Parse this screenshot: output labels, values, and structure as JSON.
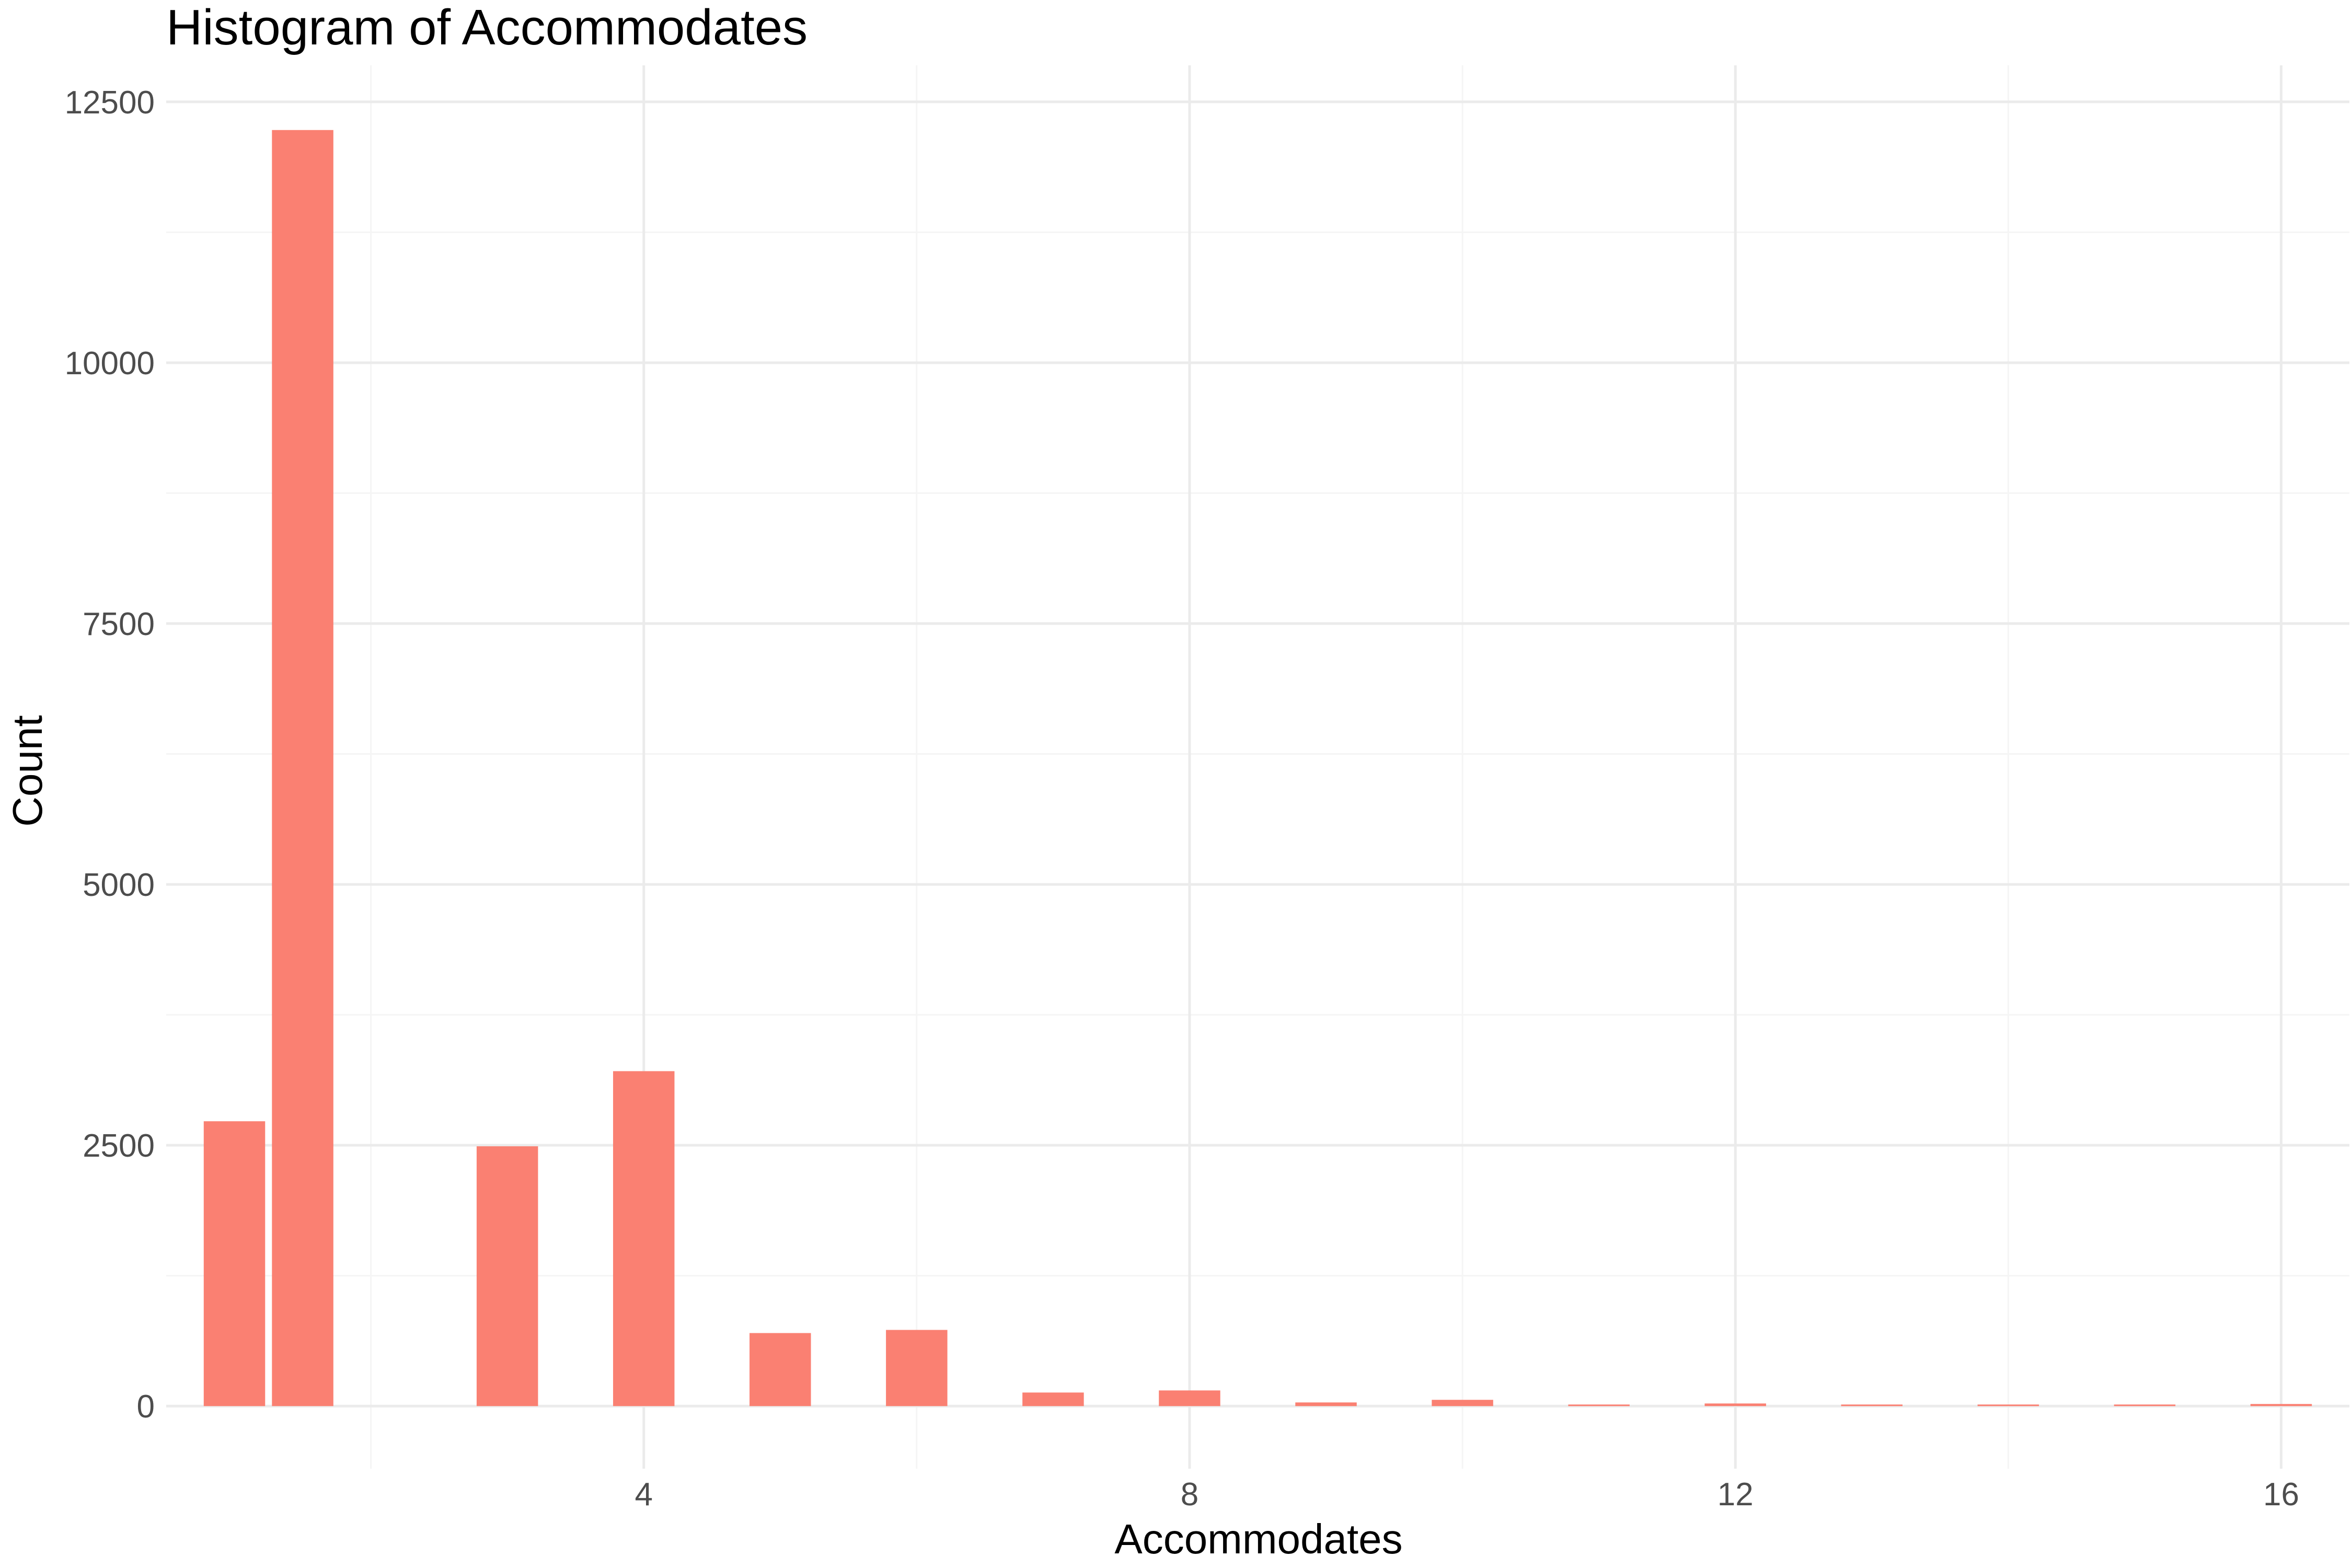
{
  "chart_data": {
    "type": "bar",
    "title": "Histogram of Accommodates",
    "xlabel": "Accommodates",
    "ylabel": "Count",
    "bar_color": "#FA8072",
    "grid": true,
    "xlim": [
      0.5,
      16.5
    ],
    "ylim": [
      -600,
      12850
    ],
    "bin_width": 0.45,
    "x_ticks": [
      4,
      8,
      12,
      16
    ],
    "x_tick_labels": [
      "4",
      "8",
      "12",
      "16"
    ],
    "x_minor_ticks": [
      2,
      6,
      10,
      14
    ],
    "y_ticks": [
      0,
      2500,
      5000,
      7500,
      10000,
      12500
    ],
    "y_tick_labels": [
      "0",
      "2500",
      "5000",
      "7500",
      "10000",
      "12500"
    ],
    "y_minor_ticks": [
      1250,
      3750,
      6250,
      8750,
      11250
    ],
    "x": [
      1,
      1.5,
      3,
      4,
      5,
      6,
      7,
      8,
      9,
      10,
      11,
      12,
      13,
      14,
      15,
      16
    ],
    "values": [
      2730,
      12230,
      2490,
      3210,
      700,
      730,
      130,
      150,
      35,
      60,
      15,
      25,
      5,
      15,
      10,
      20
    ]
  }
}
